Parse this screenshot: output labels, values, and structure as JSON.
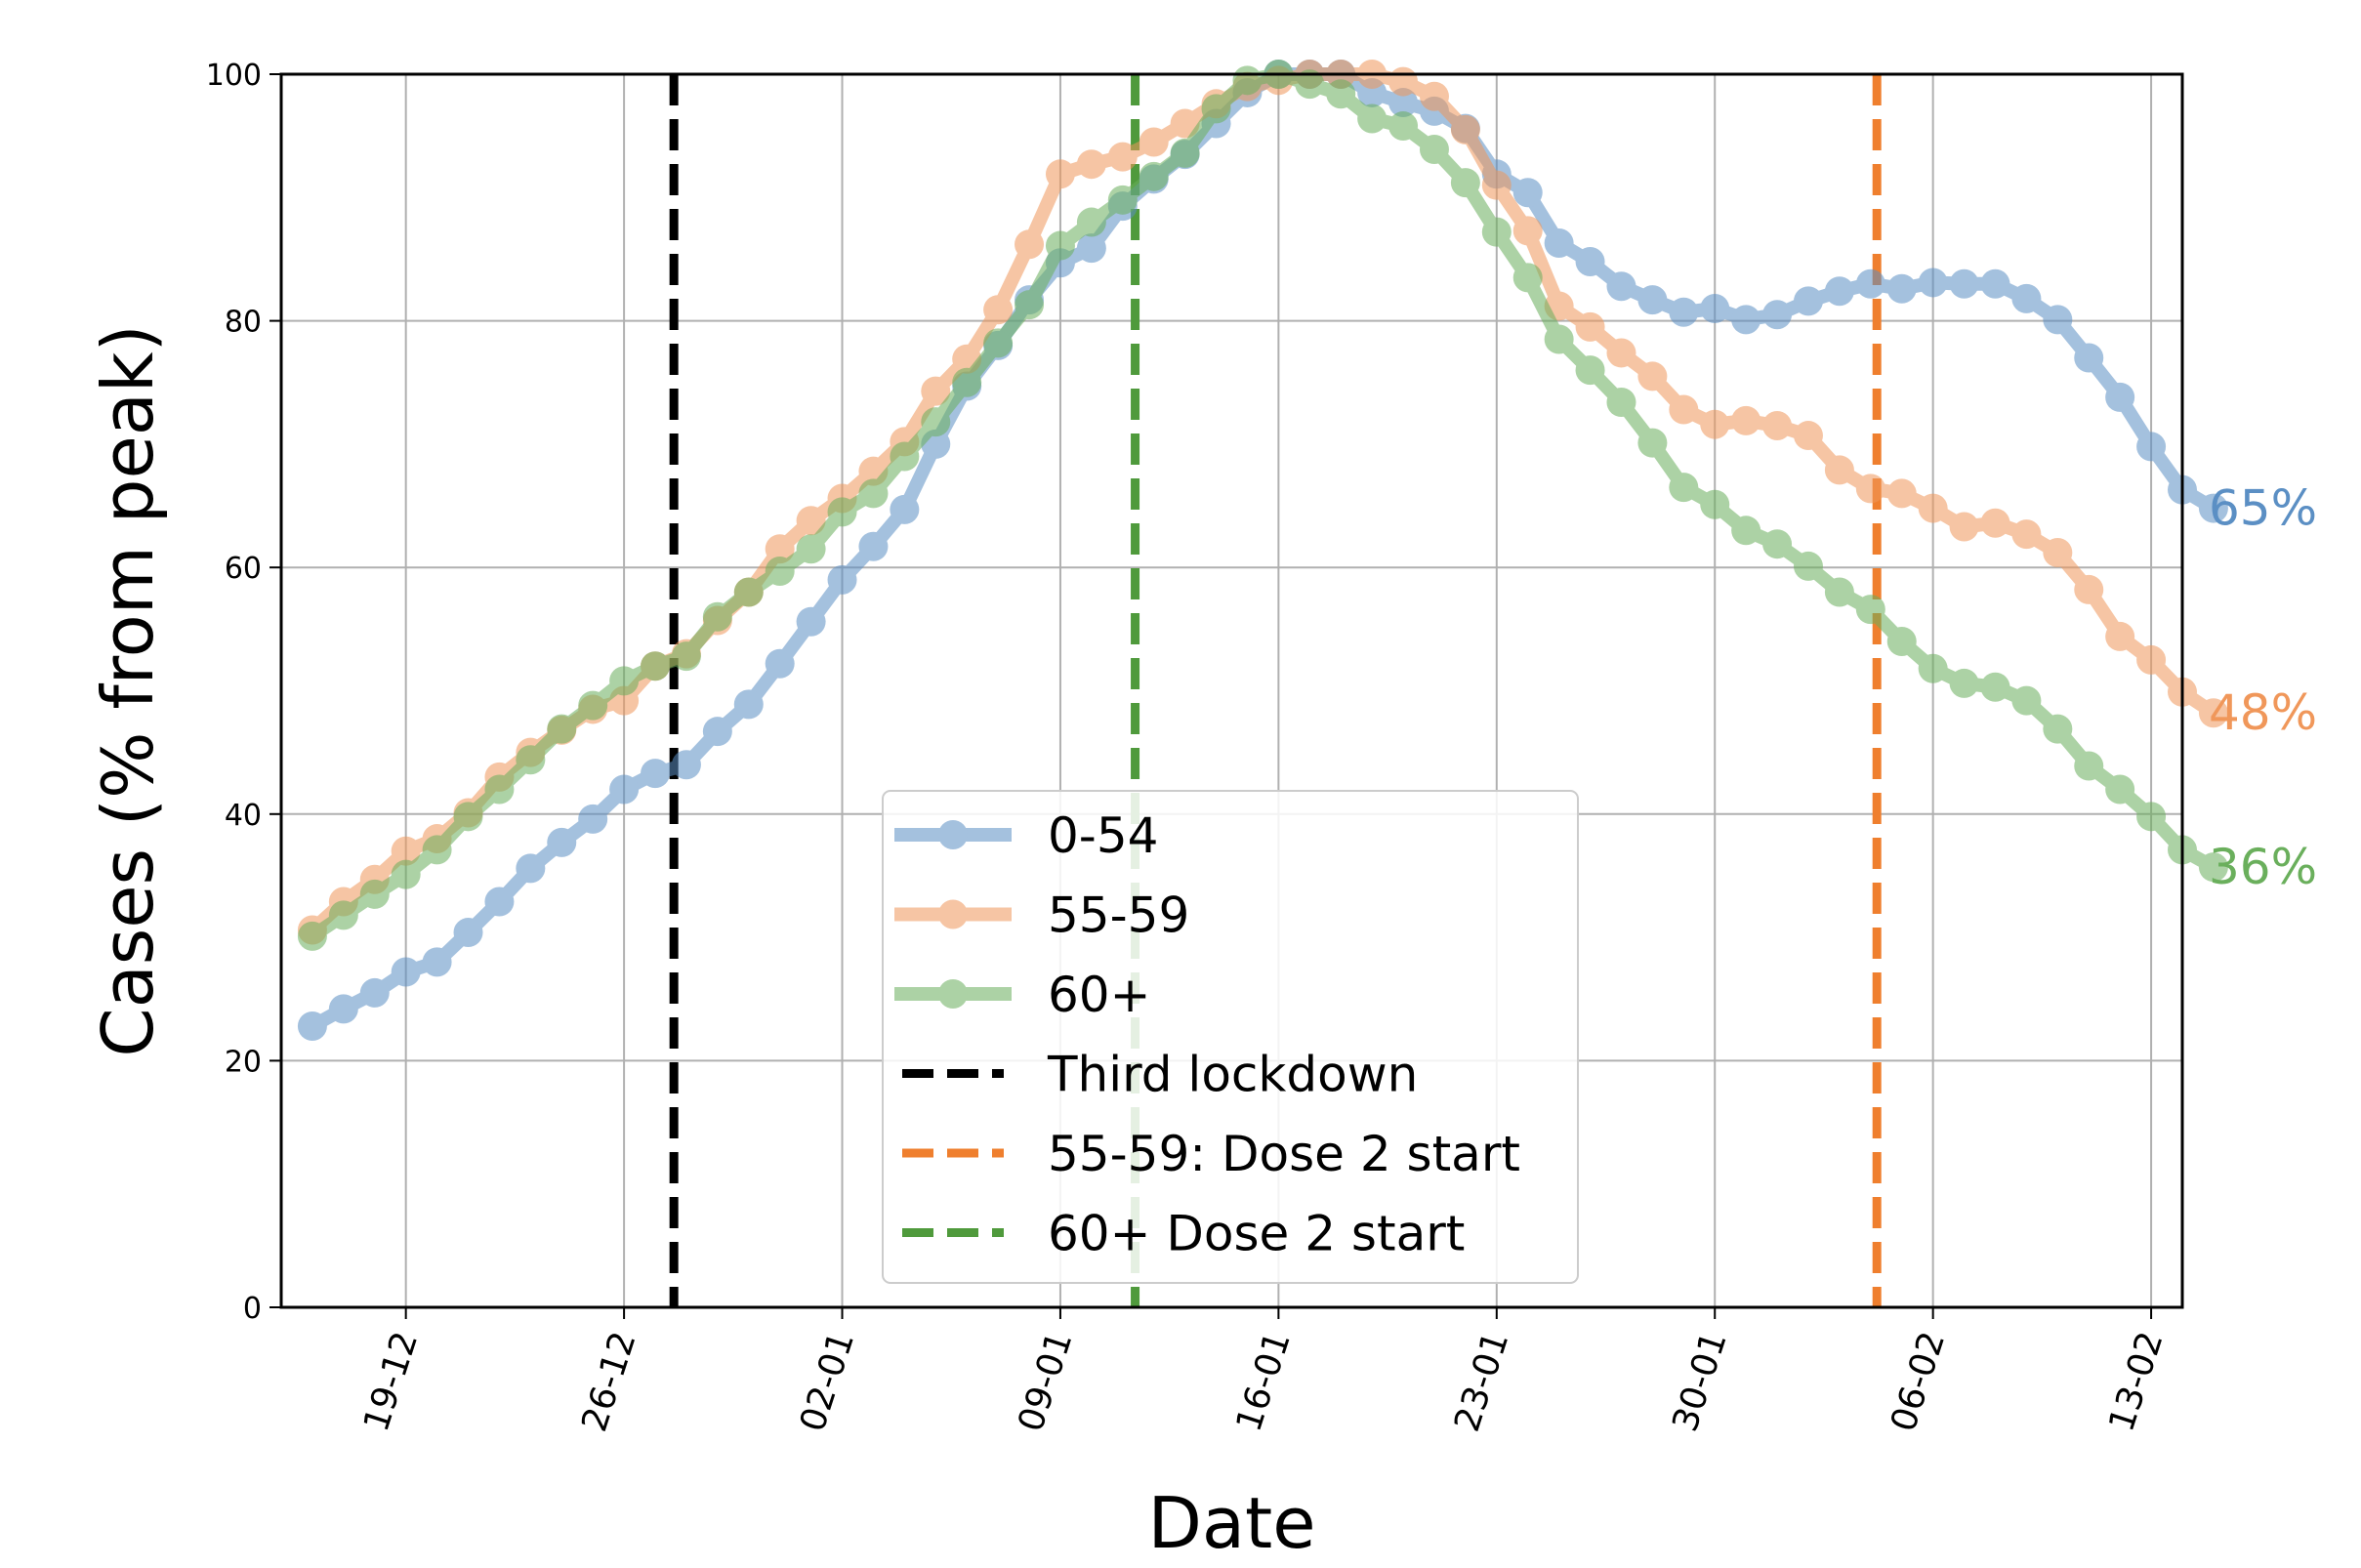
{
  "chart_data": {
    "type": "line",
    "title": "",
    "xlabel": "Date",
    "ylabel": "Cases (% from peak)",
    "ylim": [
      0,
      100
    ],
    "y_ticks": [
      0,
      20,
      40,
      60,
      80,
      100
    ],
    "x_domain": [
      "2020-12-15",
      "2021-02-14"
    ],
    "x_ticks": [
      {
        "date": "2020-12-19",
        "label": "19-12"
      },
      {
        "date": "2020-12-26",
        "label": "26-12"
      },
      {
        "date": "2021-01-02",
        "label": "02-01"
      },
      {
        "date": "2021-01-09",
        "label": "09-01"
      },
      {
        "date": "2021-01-16",
        "label": "16-01"
      },
      {
        "date": "2021-01-23",
        "label": "23-01"
      },
      {
        "date": "2021-01-30",
        "label": "30-01"
      },
      {
        "date": "2021-02-06",
        "label": "06-02"
      },
      {
        "date": "2021-02-13",
        "label": "13-02"
      }
    ],
    "grid": true,
    "legend_position": "lower-center",
    "series": [
      {
        "name": "0-54",
        "color": "#5b8fc4",
        "x_start": "2020-12-16",
        "end_label": "65%",
        "values": [
          22.8,
          24.2,
          25.5,
          27.2,
          28.0,
          30.4,
          32.9,
          35.6,
          37.7,
          39.6,
          42.0,
          43.3,
          44.0,
          46.7,
          48.9,
          52.2,
          55.6,
          59.0,
          61.7,
          64.7,
          70.0,
          74.7,
          78.0,
          81.7,
          84.7,
          85.9,
          89.3,
          91.5,
          93.5,
          96.0,
          98.5,
          100.0,
          100.0,
          100.0,
          98.5,
          97.7,
          97.0,
          95.6,
          91.9,
          90.4,
          86.3,
          84.8,
          82.8,
          81.7,
          80.7,
          81.0,
          80.1,
          80.5,
          81.6,
          82.4,
          83.0,
          82.6,
          83.1,
          83.0,
          83.0,
          81.8,
          80.1,
          77.0,
          73.8,
          69.8,
          66.3,
          64.8
        ]
      },
      {
        "name": "55-59",
        "color": "#f0975a",
        "x_start": "2020-12-16",
        "end_label": "48%",
        "values": [
          30.6,
          32.9,
          34.7,
          37.0,
          38.0,
          40.1,
          43.0,
          45.0,
          46.8,
          48.5,
          49.2,
          52.0,
          53.0,
          55.7,
          58.0,
          61.5,
          63.8,
          65.6,
          67.8,
          70.2,
          74.3,
          76.9,
          80.9,
          86.2,
          91.9,
          92.7,
          93.3,
          94.5,
          96.0,
          97.6,
          99.0,
          99.5,
          100.0,
          100.0,
          100.0,
          99.4,
          98.2,
          95.5,
          91.0,
          87.3,
          81.2,
          79.5,
          77.4,
          75.5,
          72.8,
          71.6,
          71.9,
          71.5,
          70.7,
          67.9,
          66.4,
          66.0,
          64.8,
          63.3,
          63.6,
          62.7,
          61.2,
          58.2,
          54.4,
          52.5,
          49.9,
          48.2
        ]
      },
      {
        "name": "60+",
        "color": "#6aaf5c",
        "x_start": "2020-12-16",
        "end_label": "36%",
        "values": [
          30.1,
          31.8,
          33.5,
          35.1,
          37.1,
          39.8,
          42.0,
          44.4,
          46.9,
          48.8,
          50.8,
          52.0,
          52.8,
          56.0,
          58.0,
          59.7,
          61.5,
          64.5,
          66.0,
          69.0,
          71.8,
          75.0,
          78.2,
          81.3,
          86.1,
          88.0,
          89.8,
          91.7,
          93.6,
          97.2,
          99.5,
          100.0,
          99.2,
          98.4,
          96.4,
          95.8,
          93.9,
          91.2,
          87.2,
          83.5,
          78.5,
          76.0,
          73.4,
          70.1,
          66.5,
          65.1,
          63.0,
          61.9,
          60.1,
          58.0,
          56.6,
          54.0,
          51.8,
          50.6,
          50.3,
          49.2,
          46.9,
          43.9,
          42.0,
          39.8,
          37.1,
          35.7
        ]
      }
    ],
    "vlines": [
      {
        "name": "Third lockdown",
        "date": "2020-12-27.6",
        "color": "#000000"
      },
      {
        "name": "55-59: Dose 2 start",
        "date": "2021-02-04.2",
        "color": "#ef7f2e"
      },
      {
        "name": "60+ Dose 2 start",
        "date": "2021-01-11.4",
        "color": "#4f9a3c"
      }
    ]
  }
}
